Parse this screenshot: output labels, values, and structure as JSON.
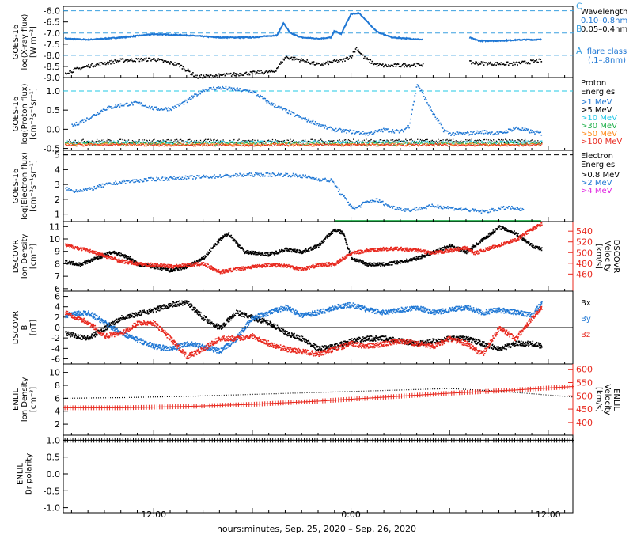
{
  "colors": {
    "black": "#000000",
    "blue": "#1f77d4",
    "cyan": "#22c8e6",
    "green": "#22b14c",
    "orange": "#ff8c1a",
    "red": "#e8281e",
    "magenta": "#e020e0",
    "dashed_cyan": "#3aa0e0"
  },
  "x_axis": {
    "label": "hours:minutes, Sep. 25, 2020 – Sep. 26, 2020",
    "range_hours": [
      6.5,
      37.5
    ],
    "ticks": [
      {
        "hour": 12,
        "label": "12:00"
      },
      {
        "hour": 24,
        "label": "0:00"
      },
      {
        "hour": 36,
        "label": "12:00"
      }
    ]
  },
  "chart_data": [
    {
      "id": "xray",
      "type": "scatter",
      "ylabel": [
        "GOES-16",
        "log(X-ray flux)",
        "[W m⁻²]"
      ],
      "ylim": [
        -9.0,
        -5.8
      ],
      "yticks": [
        -9.0,
        -8.5,
        -8.0,
        -7.5,
        -7.0,
        -6.5,
        -6.0
      ],
      "ytick_labels": [
        "-9.0",
        "-8.5",
        "-8.0",
        "-7.5",
        "-7.0",
        "-6.5",
        "-6.0"
      ],
      "flare_levels": [
        {
          "y": -6.0,
          "label": "C"
        },
        {
          "y": -7.0,
          "label": "B"
        },
        {
          "y": -8.0,
          "label": "A"
        }
      ],
      "side_labels": [
        {
          "text": "Wavelength",
          "color": "#000000"
        },
        {
          "text": "0.10–0.8nm",
          "color": "#1f77d4"
        },
        {
          "text": "0.05–0.4nm",
          "color": "#000000"
        },
        {
          "text": "flare class",
          "color": "#1f77d4"
        },
        {
          "text": "(.1–.8nm)",
          "color": "#1f77d4"
        }
      ],
      "series": [
        {
          "name": "0.10–0.8nm",
          "color": "#1f77d4",
          "style": "line",
          "x": [
            6.6,
            8,
            10,
            12,
            14,
            16,
            18,
            19.5,
            19.9,
            20.3,
            21,
            22,
            22.8,
            23.0,
            23.4,
            24.0,
            24.5,
            25.0,
            25.6,
            26.5,
            27.5,
            28.4
          ],
          "y": [
            -7.25,
            -7.3,
            -7.2,
            -7.05,
            -7.1,
            -7.2,
            -7.2,
            -7.1,
            -6.55,
            -7.0,
            -7.2,
            -7.25,
            -7.2,
            -6.9,
            -7.05,
            -6.15,
            -6.1,
            -6.5,
            -6.95,
            -7.2,
            -7.25,
            -7.3
          ]
        },
        {
          "name": "0.10–0.8nm-late",
          "color": "#1f77d4",
          "style": "line",
          "x": [
            31.2,
            31.8,
            33.0,
            34.5,
            35.6
          ],
          "y": [
            -7.2,
            -7.35,
            -7.35,
            -7.3,
            -7.3
          ]
        },
        {
          "name": "0.05–0.4nm",
          "color": "#000000",
          "style": "scatter",
          "x": [
            6.6,
            8,
            10,
            12,
            13.5,
            14.6,
            19.3,
            20.0,
            21,
            22,
            23.0,
            23.5,
            24.0,
            24.3,
            24.8,
            25.5,
            26.2,
            31.2,
            32.5,
            34,
            35.6
          ],
          "y": [
            -8.75,
            -8.45,
            -8.2,
            -8.15,
            -8.4,
            -8.95,
            -8.7,
            -8.05,
            -8.2,
            -8.4,
            -8.25,
            -8.2,
            -8.0,
            -7.65,
            -8.1,
            -8.4,
            -8.45,
            -8.3,
            -8.35,
            -8.35,
            -8.2
          ]
        }
      ]
    },
    {
      "id": "proton",
      "type": "scatter",
      "ylabel": [
        "GOES-16",
        "log(Proton flux)",
        "[cm⁻²s⁻¹sr⁻¹]"
      ],
      "ylim": [
        -0.55,
        1.35
      ],
      "yticks": [
        -0.5,
        0.0,
        0.5,
        1.0
      ],
      "ytick_labels": [
        "-0.5",
        "0.0",
        "0.5",
        "1.0"
      ],
      "dashed_level": 1.0,
      "side_labels": [
        {
          "text": "Proton",
          "color": "#000000"
        },
        {
          "text": "Energies",
          "color": "#000000"
        },
        {
          "text": ">1 MeV",
          "color": "#1f77d4"
        },
        {
          "text": ">5 MeV",
          "color": "#000000"
        },
        {
          "text": ">10 MeV",
          "color": "#22c8e6"
        },
        {
          "text": ">30 MeV",
          "color": "#22b14c"
        },
        {
          "text": ">50 MeV",
          "color": "#ff8c1a"
        },
        {
          "text": ">100 MeV",
          "color": "#e8281e"
        }
      ],
      "series": [
        {
          "name": ">1 MeV",
          "color": "#1f77d4",
          "style": "scatter",
          "x": [
            7,
            8,
            9,
            10,
            11,
            12,
            13,
            14,
            15,
            16,
            17,
            18,
            19,
            20,
            21,
            22,
            22.5,
            23,
            24,
            25,
            26,
            27,
            27.5,
            28,
            29,
            29.6,
            30,
            31,
            32,
            33,
            34,
            35,
            35.6
          ],
          "y": [
            0.1,
            0.3,
            0.55,
            0.65,
            0.7,
            0.55,
            0.55,
            0.75,
            1.05,
            1.1,
            1.05,
            1.0,
            0.7,
            0.5,
            0.3,
            0.15,
            0.05,
            0.0,
            -0.05,
            -0.1,
            0.0,
            -0.05,
            0.1,
            1.2,
            0.4,
            0.0,
            -0.1,
            -0.1,
            -0.05,
            -0.1,
            0.05,
            -0.05,
            -0.1
          ]
        },
        {
          "name": ">5 MeV",
          "color": "#000000",
          "style": "band",
          "base": -0.3,
          "spread": 0.05
        },
        {
          "name": ">10 MeV",
          "color": "#22c8e6",
          "style": "band",
          "base": -0.33,
          "spread": 0.04
        },
        {
          "name": ">30 MeV",
          "color": "#22b14c",
          "style": "band",
          "base": -0.36,
          "spread": 0.04
        },
        {
          "name": ">50 MeV",
          "color": "#ff8c1a",
          "style": "band",
          "base": -0.38,
          "spread": 0.03
        },
        {
          "name": ">100 MeV",
          "color": "#e8281e",
          "style": "band",
          "base": -0.4,
          "spread": 0.03
        }
      ]
    },
    {
      "id": "electron",
      "type": "scatter",
      "ylabel": [
        "GOES-16",
        "log(Electron flux)",
        "[cm⁻²s⁻¹sr⁻¹]"
      ],
      "ylim": [
        0.5,
        5.3
      ],
      "yticks": [
        1,
        2,
        3,
        4,
        5
      ],
      "ytick_labels": [
        "1",
        "2",
        "3",
        "4",
        "5"
      ],
      "dashed_level": 5.0,
      "side_labels": [
        {
          "text": "Electron",
          "color": "#000000"
        },
        {
          "text": "Energies",
          "color": "#000000"
        },
        {
          "text": ">0.8 MeV",
          "color": "#000000"
        },
        {
          "text": ">2 MeV",
          "color": "#1f77d4"
        },
        {
          "text": ">4 MeV",
          "color": "#e020e0"
        }
      ],
      "series": [
        {
          "name": ">2 MeV",
          "color": "#1f77d4",
          "style": "scatter",
          "x": [
            6.6,
            7,
            8,
            9,
            10,
            12,
            14,
            16,
            18,
            20,
            21,
            22,
            22.8,
            23,
            23.3,
            23.8,
            24.2,
            24.8,
            25.5,
            26.5,
            27.5,
            29,
            30.5,
            32,
            33.5,
            34.5
          ],
          "y": [
            2.8,
            2.6,
            2.7,
            3.0,
            3.2,
            3.4,
            3.5,
            3.6,
            3.7,
            3.7,
            3.6,
            3.4,
            3.3,
            3.0,
            2.5,
            1.8,
            1.4,
            1.8,
            2.0,
            1.5,
            1.3,
            1.6,
            1.4,
            1.2,
            1.5,
            1.3
          ]
        },
        {
          "name": ">0.8 MeV-floor",
          "color": "#22b14c",
          "style": "line",
          "x": [
            23.0,
            35.6
          ],
          "y": [
            0.55,
            0.55
          ]
        }
      ]
    },
    {
      "id": "dscovr_density",
      "type": "scatter",
      "ylabel": [
        "DSCOVR",
        "Ion Density",
        "[cm⁻³]"
      ],
      "ylim": [
        5.8,
        11.4
      ],
      "yticks": [
        6,
        7,
        8,
        9,
        10,
        11
      ],
      "ytick_labels": [
        "6",
        "7",
        "8",
        "9",
        "10",
        "11"
      ],
      "right_axis": {
        "label": [
          "DSCOVR",
          "Velocity",
          "[km/s]"
        ],
        "ylim": [
          428,
          558
        ],
        "yticks": [
          460,
          480,
          500,
          520,
          540
        ],
        "ytick_labels": [
          "460",
          "480",
          "500",
          "520",
          "540"
        ],
        "color": "#e8281e"
      },
      "series": [
        {
          "name": "Ion Density",
          "color": "#000000",
          "style": "scatter",
          "x": [
            6.6,
            7.5,
            8.5,
            9.5,
            10.5,
            11,
            12,
            13,
            14,
            15,
            16,
            16.5,
            17.5,
            19,
            20,
            21,
            22,
            22.5,
            23,
            23.5,
            24,
            25,
            26,
            27,
            28,
            29,
            30,
            31,
            32,
            33,
            34,
            35,
            35.6
          ],
          "y": [
            8.2,
            8.0,
            8.5,
            9.0,
            8.5,
            8.0,
            7.8,
            7.5,
            7.8,
            8.5,
            10.0,
            10.5,
            9.0,
            8.8,
            9.2,
            9.0,
            9.5,
            10.2,
            10.8,
            10.5,
            8.5,
            8.0,
            8.0,
            8.2,
            8.5,
            9.0,
            9.5,
            9.0,
            10.0,
            11.0,
            10.5,
            9.5,
            9.2
          ]
        },
        {
          "name": "Velocity",
          "color": "#e8281e",
          "style": "scatter",
          "axis": "right",
          "x": [
            6.6,
            8,
            9,
            10,
            11,
            12,
            13,
            14,
            15,
            16,
            17,
            18,
            19,
            20,
            21,
            22,
            23,
            24,
            25,
            26,
            27,
            28,
            29,
            30,
            31,
            31.5,
            32,
            33,
            34,
            35,
            35.6
          ],
          "y": [
            515,
            505,
            495,
            485,
            480,
            478,
            475,
            478,
            480,
            465,
            470,
            475,
            478,
            477,
            470,
            478,
            480,
            500,
            505,
            508,
            508,
            505,
            500,
            505,
            510,
            500,
            505,
            515,
            525,
            545,
            555
          ]
        }
      ]
    },
    {
      "id": "dscovr_b",
      "type": "scatter",
      "ylabel": [
        "DSCOVR",
        "B",
        "[nT]"
      ],
      "ylim": [
        -7.0,
        7.0
      ],
      "yticks": [
        -6,
        -4,
        -2,
        0,
        2,
        4,
        6
      ],
      "ytick_labels": [
        "-6",
        "-4",
        "-2",
        "0",
        "2",
        "4",
        "6"
      ],
      "zero_line": true,
      "side_labels": [
        {
          "text": "Bx",
          "color": "#000000"
        },
        {
          "text": "By",
          "color": "#1f77d4"
        },
        {
          "text": "Bz",
          "color": "#e8281e"
        }
      ],
      "series": [
        {
          "name": "Bx",
          "color": "#000000",
          "style": "scatter",
          "x": [
            6.6,
            8,
            10,
            12,
            13,
            14,
            15,
            16,
            17,
            18,
            19,
            20,
            21,
            22,
            23,
            24,
            25,
            26,
            27,
            28,
            29,
            30,
            31,
            32,
            33,
            34,
            35,
            35.6
          ],
          "y": [
            -1.0,
            -2.0,
            2.0,
            3.5,
            4.5,
            5.0,
            2.0,
            0.0,
            3.0,
            2.0,
            1.0,
            -1.0,
            -2.0,
            -4.0,
            -3.5,
            -2.5,
            -2.0,
            -2.0,
            -2.5,
            -3.0,
            -2.5,
            -2.0,
            -2.0,
            -3.0,
            -4.0,
            -3.0,
            -3.0,
            -3.5
          ]
        },
        {
          "name": "By",
          "color": "#1f77d4",
          "style": "scatter",
          "x": [
            6.6,
            8,
            10,
            12,
            13,
            14,
            15,
            16,
            17,
            18,
            19,
            20,
            21,
            22,
            23,
            24,
            25,
            26,
            27,
            28,
            29,
            30,
            31,
            32,
            33,
            34,
            35,
            35.6
          ],
          "y": [
            2.5,
            3.0,
            -1.0,
            -3.5,
            -4.0,
            -3.0,
            -3.5,
            -4.5,
            -2.0,
            2.0,
            3.0,
            4.0,
            2.5,
            3.0,
            4.0,
            4.5,
            3.5,
            3.0,
            3.5,
            4.0,
            3.0,
            3.5,
            4.0,
            3.0,
            3.5,
            3.0,
            2.5,
            5.0
          ]
        },
        {
          "name": "Bz",
          "color": "#e8281e",
          "style": "scatter",
          "x": [
            6.6,
            8,
            9,
            10,
            11,
            12,
            13,
            14,
            15,
            16,
            17,
            18,
            19,
            20,
            21,
            22,
            23,
            24,
            25,
            26,
            27,
            28,
            29,
            30,
            31,
            32,
            33,
            34,
            35,
            35.6
          ],
          "y": [
            3.0,
            1.0,
            -1.5,
            -1.0,
            1.0,
            1.0,
            -2.0,
            -5.5,
            -4.0,
            -2.0,
            -2.0,
            -1.5,
            -3.0,
            -4.0,
            -4.5,
            -5.0,
            -4.0,
            -3.0,
            -3.5,
            -3.0,
            -2.5,
            -3.0,
            -3.5,
            -2.0,
            -3.0,
            -5.0,
            0.0,
            -2.0,
            2.0,
            4.0
          ]
        }
      ]
    },
    {
      "id": "enlil_density",
      "type": "line",
      "ylabel": [
        "ENLIL",
        "Ion Density",
        "[cm⁻³]"
      ],
      "ylim": [
        0.3,
        11.3
      ],
      "yticks": [
        2,
        4,
        6,
        8,
        10
      ],
      "ytick_labels": [
        "2",
        "4",
        "6",
        "8",
        "10"
      ],
      "right_axis": {
        "label": [
          "ENLIL",
          "Velocity",
          "[km/s]"
        ],
        "ylim": [
          352,
          620
        ],
        "yticks": [
          400,
          450,
          500,
          550,
          600
        ],
        "ytick_labels": [
          "400",
          "450",
          "500",
          "550",
          "600"
        ],
        "color": "#e8281e"
      },
      "series": [
        {
          "name": "Ion Density",
          "color": "#000000",
          "style": "dotted",
          "x": [
            6.6,
            10,
            14,
            18,
            22,
            26,
            30,
            33,
            37.5
          ],
          "y": [
            6.0,
            6.1,
            6.3,
            6.6,
            6.9,
            7.2,
            7.5,
            7.1,
            6.2
          ]
        },
        {
          "name": "Velocity",
          "color": "#e8281e",
          "style": "cross",
          "axis": "right",
          "x": [
            6.6,
            10,
            14,
            18,
            22,
            26,
            30,
            34,
            37.5
          ],
          "y": [
            455,
            455,
            460,
            468,
            480,
            495,
            510,
            522,
            535
          ]
        }
      ]
    },
    {
      "id": "enlil_polarity",
      "type": "scatter",
      "ylabel": [
        "ENLIL",
        "Br polarity"
      ],
      "ylim": [
        -1.15,
        1.15
      ],
      "yticks": [
        -1.0,
        -0.5,
        0.0,
        0.5,
        1.0
      ],
      "ytick_labels": [
        "-1.0",
        "-0.5",
        "0.0",
        "0.5",
        "1.0"
      ],
      "series": [
        {
          "name": "Br polarity",
          "color": "#000000",
          "style": "cross",
          "x": [
            6.6,
            37.5
          ],
          "y": [
            1.0,
            1.0
          ]
        }
      ]
    }
  ]
}
